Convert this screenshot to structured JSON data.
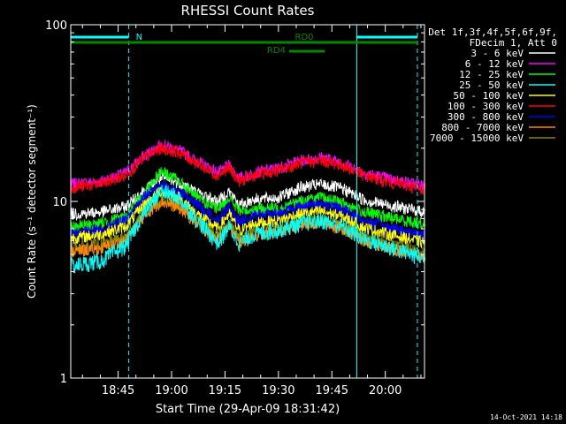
{
  "chart_data": {
    "type": "line",
    "title": "RHESSI Count Rates",
    "xlabel": "Start Time (29-Apr-09 18:31:42)",
    "ylabel": "Count Rate (s⁻¹ detector segment⁻¹)",
    "yscale": "log",
    "ylim": [
      1,
      100
    ],
    "xlim": [
      "18:31:42",
      "20:11:00"
    ],
    "x_ticks": [
      "18:45",
      "19:00",
      "19:15",
      "19:30",
      "19:45",
      "20:00"
    ],
    "y_ticks": [
      "1",
      "10",
      "100"
    ],
    "legend": {
      "placement": "right",
      "header": [
        "Det 1f,3f,4f,5f,6f,9f,",
        "FDecim 1, Att 0"
      ]
    },
    "time_points": [
      "18:31:42",
      "18:40",
      "18:47",
      "18:52",
      "18:57",
      "19:02",
      "19:08",
      "19:13",
      "19:16",
      "19:19",
      "19:23",
      "19:30",
      "19:36",
      "19:42",
      "19:48",
      "19:54",
      "20:00",
      "20:10"
    ],
    "series": [
      {
        "name": "3 - 6 keV",
        "color": "#ffffff",
        "values": [
          8.5,
          8.7,
          9.3,
          11.5,
          13.5,
          12.8,
          11.0,
          10.0,
          11.5,
          9.5,
          10.3,
          10.5,
          12.0,
          12.5,
          11.8,
          10.2,
          9.6,
          8.8
        ]
      },
      {
        "name": "6 - 12 keV",
        "color": "#ff00ff",
        "values": [
          12.5,
          13.0,
          14.5,
          18.0,
          21.0,
          19.5,
          16.5,
          14.5,
          16.0,
          13.5,
          14.5,
          15.5,
          17.0,
          17.8,
          16.5,
          14.5,
          13.6,
          12.3
        ]
      },
      {
        "name": "12 - 25 keV",
        "color": "#00ff00",
        "values": [
          7.2,
          7.5,
          8.2,
          11.0,
          15.0,
          13.0,
          10.2,
          9.0,
          10.5,
          8.8,
          9.0,
          9.2,
          10.0,
          10.5,
          9.8,
          8.7,
          8.2,
          7.5
        ]
      },
      {
        "name": "25 - 50 keV",
        "color": "#00ffff",
        "values": [
          4.3,
          4.6,
          5.6,
          8.5,
          11.5,
          10.5,
          7.5,
          5.8,
          7.2,
          5.8,
          6.5,
          6.9,
          7.5,
          7.8,
          7.2,
          6.1,
          5.6,
          4.8
        ]
      },
      {
        "name": "50 - 100 keV",
        "color": "#ffff00",
        "values": [
          6.2,
          6.5,
          7.2,
          9.5,
          11.5,
          10.5,
          8.2,
          7.0,
          8.5,
          6.8,
          7.5,
          7.8,
          8.5,
          8.8,
          8.2,
          7.1,
          6.6,
          5.9
        ]
      },
      {
        "name": "100 - 300 keV",
        "color": "#ff0000",
        "values": [
          12.0,
          12.5,
          14.0,
          17.5,
          20.0,
          19.0,
          16.0,
          14.0,
          15.5,
          13.0,
          14.0,
          15.0,
          16.5,
          17.0,
          16.0,
          14.0,
          13.0,
          11.8
        ]
      },
      {
        "name": "300 - 800 keV",
        "color": "#0000ff",
        "values": [
          6.6,
          6.9,
          7.8,
          10.5,
          12.5,
          11.5,
          9.2,
          7.9,
          9.4,
          7.6,
          8.3,
          8.6,
          9.4,
          9.7,
          9.0,
          7.8,
          7.2,
          6.5
        ]
      },
      {
        "name": "800 - 7000 keV",
        "color": "#ff8800",
        "values": [
          5.2,
          5.4,
          6.0,
          8.2,
          10.0,
          9.2,
          7.2,
          6.0,
          7.3,
          5.8,
          6.4,
          6.7,
          7.3,
          7.6,
          7.0,
          6.0,
          5.5,
          4.9
        ]
      },
      {
        "name": "7000 - 15000 keV",
        "color": "#888800",
        "values": [
          5.5,
          5.7,
          6.3,
          8.5,
          10.3,
          9.5,
          7.5,
          6.3,
          7.6,
          6.1,
          6.7,
          7.0,
          7.6,
          7.9,
          7.3,
          6.3,
          5.8,
          5.2
        ]
      }
    ],
    "annotations": {
      "attenuator_bars": [
        {
          "label": "N",
          "color": "#00ffff",
          "from": "18:31:42",
          "to": "18:48:00"
        },
        {
          "label": "",
          "color": "#00ffff",
          "from": "19:52:00",
          "to": "20:09:00"
        }
      ],
      "decimation_bars": [
        {
          "label": "RD0",
          "color": "#008800",
          "from": "18:31:42",
          "to": "20:09:00"
        },
        {
          "label": "RD4",
          "color": "#008800",
          "from": "19:33:00",
          "to": "19:43:00"
        }
      ],
      "night_lines": [
        "18:31:42",
        "18:48:00",
        "19:52:00",
        "20:09:00"
      ]
    }
  },
  "footer": {
    "timestamp": "14-Oct-2021 14:18"
  }
}
